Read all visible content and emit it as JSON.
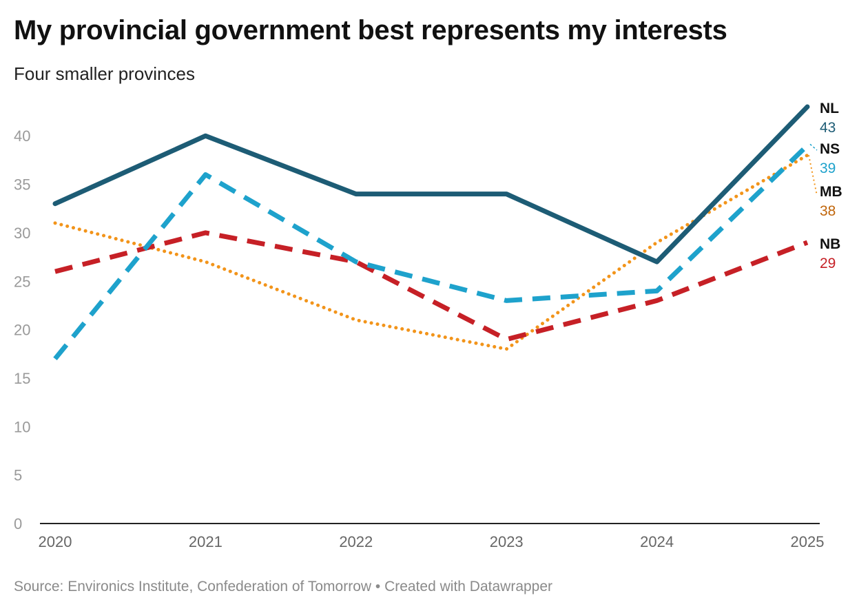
{
  "title": "My provincial government best represents my interests",
  "subtitle": "Four smaller provinces",
  "footer": {
    "source": "Source: Environics Institute, Confederation of Tomorrow",
    "separator": " • ",
    "credit": "Created with Datawrapper"
  },
  "chart_data": {
    "type": "line",
    "title": "My provincial government best represents my interests",
    "subtitle": "Four smaller provinces",
    "xlabel": "",
    "ylabel": "",
    "x": [
      "2020",
      "2021",
      "2022",
      "2023",
      "2024",
      "2025"
    ],
    "ylim": [
      0,
      43
    ],
    "yticks": [
      0,
      5,
      10,
      15,
      20,
      25,
      30,
      35,
      40
    ],
    "grid": false,
    "series": [
      {
        "name": "NL",
        "values": [
          33,
          40,
          34,
          34,
          27,
          43
        ],
        "color": "#1d5c75",
        "style": "solid",
        "end_label": "43"
      },
      {
        "name": "NS",
        "values": [
          17,
          36,
          27,
          23,
          24,
          39
        ],
        "color": "#1ea2cc",
        "style": "dashed",
        "end_label": "39"
      },
      {
        "name": "MB",
        "values": [
          31,
          27,
          21,
          18,
          29,
          38
        ],
        "color": "#f2941a",
        "style": "dotted",
        "end_label": "38",
        "label_color": "#c0650a"
      },
      {
        "name": "NB",
        "values": [
          26,
          30,
          27,
          19,
          23,
          29
        ],
        "color": "#c62026",
        "style": "dashed",
        "end_label": "29"
      }
    ]
  }
}
